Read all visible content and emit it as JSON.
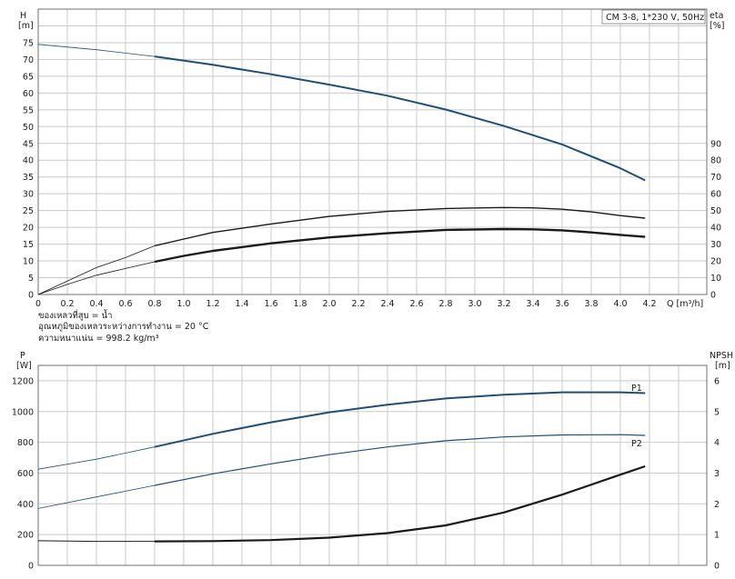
{
  "chart_data": [
    {
      "type": "line",
      "title": "",
      "legend_box": "CM 3-8, 1*230 V, 50Hz",
      "ylabel": "H",
      "ylabel_unit": "[m]",
      "y2label": "eta",
      "y2label_unit": "[%]",
      "xlabel": "Q [m³/h]",
      "xlim": [
        0,
        4.2
      ],
      "ylim": [
        0,
        85
      ],
      "y2lim": [
        0,
        170
      ],
      "grid": true,
      "x_ticks": [
        "0",
        "0.2",
        "0.4",
        "0.6",
        "0.8",
        "1.0",
        "1.2",
        "1.4",
        "1.6",
        "1.8",
        "2.0",
        "2.2",
        "2.4",
        "2.6",
        "2.8",
        "3.0",
        "3.2",
        "3.4",
        "3.6",
        "3.8",
        "4.0",
        "4.2"
      ],
      "y_ticks": [
        "0",
        "5",
        "10",
        "15",
        "20",
        "25",
        "30",
        "35",
        "40",
        "45",
        "50",
        "55",
        "60",
        "65",
        "70",
        "75",
        "80",
        "85"
      ],
      "y2_ticks": [
        "0",
        "10",
        "20",
        "30",
        "40",
        "50",
        "60",
        "70",
        "80",
        "90"
      ],
      "notes": [
        "ของเหลวที่สูบ = น้ำ",
        "อุณหภูมิของเหลวระหว่างการทำงาน = 20 °C",
        "ความหนาแน่น = 998.2 kg/m³"
      ],
      "series": [
        {
          "key": "head",
          "axis": "left",
          "color": "#1f4e79",
          "x": [
            0,
            0.4,
            0.8,
            1.2,
            1.6,
            2.0,
            2.4,
            2.8,
            3.2,
            3.6,
            4.0,
            4.17
          ],
          "y": [
            74.5,
            72.9,
            70.9,
            68.4,
            65.6,
            62.5,
            59.2,
            55.1,
            50.2,
            44.7,
            37.6,
            34.0
          ]
        },
        {
          "key": "eta-thin",
          "axis": "right",
          "color": "#1a1a1a",
          "x": [
            0,
            0.2,
            0.4,
            0.6,
            0.8,
            1.0,
            1.2,
            1.6,
            2.0,
            2.4,
            2.8,
            3.2,
            3.4,
            3.6,
            3.8,
            4.0,
            4.17
          ],
          "y": [
            0,
            8,
            16,
            22,
            29,
            33,
            37,
            42,
            46.5,
            49.5,
            51.2,
            51.8,
            51.6,
            50.8,
            49.2,
            47,
            45.5
          ]
        },
        {
          "key": "eta-thick",
          "axis": "right",
          "color": "#1a1a1a",
          "x": [
            0,
            0.2,
            0.4,
            0.6,
            0.8,
            1.0,
            1.2,
            1.6,
            2.0,
            2.4,
            2.8,
            3.2,
            3.4,
            3.6,
            3.8,
            4.0,
            4.17
          ],
          "y": [
            0,
            6,
            11.5,
            15.5,
            19.5,
            23,
            26,
            30.5,
            34,
            36.5,
            38.5,
            39,
            38.8,
            38.2,
            37,
            35.5,
            34.3
          ]
        }
      ]
    },
    {
      "type": "line",
      "title": "",
      "ylabel": "P",
      "ylabel_unit": "[W]",
      "y2label": "NPSH",
      "y2label_unit": "[m]",
      "xlim": [
        0,
        4.2
      ],
      "ylim": [
        0,
        1300
      ],
      "y2lim": [
        0,
        6.5
      ],
      "grid": true,
      "y_ticks": [
        "0",
        "200",
        "400",
        "600",
        "800",
        "1000",
        "1200"
      ],
      "y2_ticks": [
        "0",
        "1",
        "2",
        "3",
        "4",
        "5",
        "6"
      ],
      "series": [
        {
          "key": "p1",
          "name": "P1",
          "axis": "left",
          "color": "#1f4e79",
          "x": [
            0,
            0.4,
            0.8,
            1.2,
            1.6,
            2.0,
            2.4,
            2.8,
            3.2,
            3.6,
            4.0,
            4.17
          ],
          "y": [
            625,
            690,
            770,
            855,
            930,
            995,
            1045,
            1085,
            1110,
            1125,
            1125,
            1120
          ]
        },
        {
          "key": "p2",
          "name": "P2",
          "axis": "left",
          "color": "#1f4e79",
          "x": [
            0,
            0.4,
            0.8,
            1.2,
            1.6,
            2.0,
            2.4,
            2.8,
            3.2,
            3.6,
            4.0,
            4.17
          ],
          "y": [
            370,
            445,
            520,
            595,
            660,
            720,
            770,
            810,
            835,
            848,
            850,
            845
          ]
        },
        {
          "key": "npsh",
          "axis": "right",
          "color": "#1a1a1a",
          "x": [
            0,
            0.4,
            0.8,
            1.2,
            1.6,
            2.0,
            2.4,
            2.8,
            3.2,
            3.6,
            4.0,
            4.17
          ],
          "y": [
            0.8,
            0.78,
            0.78,
            0.79,
            0.82,
            0.9,
            1.05,
            1.3,
            1.72,
            2.3,
            2.95,
            3.22
          ]
        }
      ]
    }
  ]
}
